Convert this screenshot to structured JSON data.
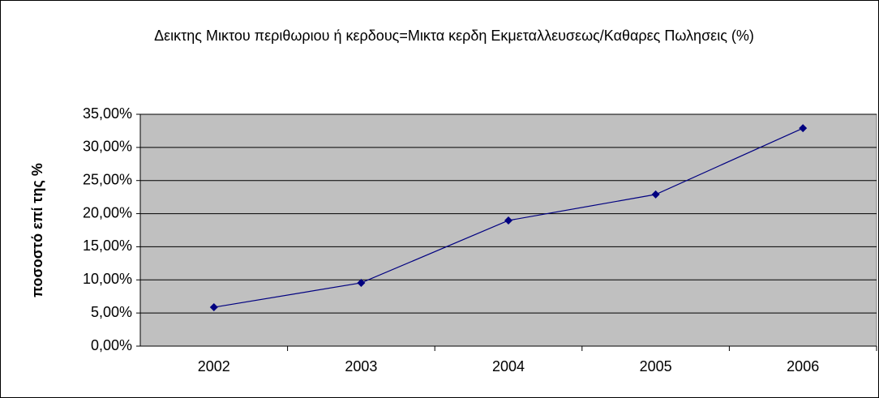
{
  "chart_data": {
    "type": "line",
    "title": "Δεικτης Μικτου περιθωριου ή κερδους=Μικτα κερδη Εκμεταλλευσεως/Καθαρες Πωλησεις (%)",
    "y_label": "ποσοστό επί της %",
    "categories": [
      "2002",
      "2003",
      "2004",
      "2005",
      "2006"
    ],
    "series": [
      {
        "name": "Δεικτης Μικτου περιθωριου",
        "color": "#000080",
        "values": [
          5.87,
          9.55,
          18.97,
          22.9,
          32.9
        ]
      }
    ],
    "ylim": [
      0,
      35
    ],
    "yticks": [
      {
        "value": 0,
        "label": "0,00%"
      },
      {
        "value": 5,
        "label": "5,00%"
      },
      {
        "value": 10,
        "label": "10,00%"
      },
      {
        "value": 15,
        "label": "15,00%"
      },
      {
        "value": 20,
        "label": "20,00%"
      },
      {
        "value": 25,
        "label": "25,00%"
      },
      {
        "value": 30,
        "label": "30,00%"
      },
      {
        "value": 35,
        "label": "35,00%"
      }
    ],
    "grid": true,
    "plot_background": "#c0c0c0"
  }
}
